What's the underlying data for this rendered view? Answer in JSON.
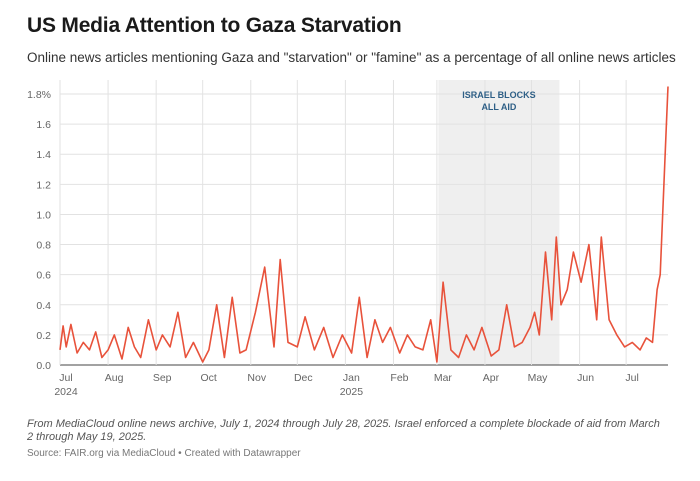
{
  "title": "US Media Attention to Gaza Starvation",
  "subtitle": "Online news articles mentioning Gaza and \"starvation\" or \"famine\" as a percentage of all online news articles",
  "notes": "From MediaCloud online news archive, July 1, 2024 through July 28, 2025. Israel enforced a complete blockade of aid from March 2 through May 19, 2025.",
  "source": "Source: FAIR.org via MediaCloud • Created with Datawrapper",
  "colors": {
    "line": "#e8523b",
    "shade": "#efefef",
    "grid": "#e2e2e2",
    "annotation": "#2e5f86"
  },
  "chart_data": {
    "type": "line",
    "title": "US Media Attention to Gaza Starvation",
    "xlabel": "",
    "ylabel": "",
    "xlim": [
      "2024-07-01",
      "2025-07-28"
    ],
    "ylim": [
      0,
      1.8
    ],
    "y_ticks": [
      "1.8%",
      "1.6",
      "1.4",
      "1.2",
      "1.0",
      "0.8",
      "0.6",
      "0.4",
      "0.2",
      "0.0"
    ],
    "x_ticks": [
      {
        "label": "Jul",
        "year": "2024"
      },
      {
        "label": "Aug",
        "year": ""
      },
      {
        "label": "Sep",
        "year": ""
      },
      {
        "label": "Oct",
        "year": ""
      },
      {
        "label": "Nov",
        "year": ""
      },
      {
        "label": "Dec",
        "year": ""
      },
      {
        "label": "Jan",
        "year": "2025"
      },
      {
        "label": "Feb",
        "year": ""
      },
      {
        "label": "Mar",
        "year": ""
      },
      {
        "label": "Apr",
        "year": ""
      },
      {
        "label": "May",
        "year": ""
      },
      {
        "label": "Jun",
        "year": ""
      },
      {
        "label": "Jul",
        "year": ""
      }
    ],
    "grid": true,
    "shaded_period": {
      "start": "2025-03-02",
      "end": "2025-05-19",
      "label_line1": "ISRAEL BLOCKS",
      "label_line2": "ALL AID"
    },
    "series": [
      {
        "x": [
          "2024-07-01",
          "2024-07-03",
          "2024-07-05",
          "2024-07-08",
          "2024-07-12",
          "2024-07-16",
          "2024-07-20",
          "2024-07-24",
          "2024-07-28",
          "2024-08-01",
          "2024-08-05",
          "2024-08-10",
          "2024-08-14",
          "2024-08-18",
          "2024-08-22",
          "2024-08-27",
          "2024-09-01",
          "2024-09-05",
          "2024-09-10",
          "2024-09-15",
          "2024-09-20",
          "2024-09-25",
          "2024-10-01",
          "2024-10-05",
          "2024-10-10",
          "2024-10-15",
          "2024-10-20",
          "2024-10-25",
          "2024-10-29",
          "2024-11-04",
          "2024-11-10",
          "2024-11-16",
          "2024-11-20",
          "2024-11-25",
          "2024-12-01",
          "2024-12-06",
          "2024-12-12",
          "2024-12-18",
          "2024-12-24",
          "2024-12-30",
          "2025-01-05",
          "2025-01-10",
          "2025-01-15",
          "2025-01-20",
          "2025-01-25",
          "2025-01-30",
          "2025-02-05",
          "2025-02-10",
          "2025-02-15",
          "2025-02-20",
          "2025-02-25",
          "2025-03-01",
          "2025-03-05",
          "2025-03-10",
          "2025-03-15",
          "2025-03-20",
          "2025-03-25",
          "2025-03-30",
          "2025-04-05",
          "2025-04-10",
          "2025-04-15",
          "2025-04-20",
          "2025-04-25",
          "2025-04-30",
          "2025-05-03",
          "2025-05-06",
          "2025-05-10",
          "2025-05-14",
          "2025-05-17",
          "2025-05-20",
          "2025-05-24",
          "2025-05-28",
          "2025-06-02",
          "2025-06-07",
          "2025-06-12",
          "2025-06-15",
          "2025-06-20",
          "2025-06-25",
          "2025-06-30",
          "2025-07-05",
          "2025-07-10",
          "2025-07-14",
          "2025-07-18",
          "2025-07-21",
          "2025-07-23",
          "2025-07-25",
          "2025-07-27",
          "2025-07-28"
        ],
        "y": [
          0.1,
          0.26,
          0.12,
          0.27,
          0.08,
          0.15,
          0.1,
          0.22,
          0.05,
          0.1,
          0.2,
          0.04,
          0.25,
          0.12,
          0.05,
          0.3,
          0.1,
          0.2,
          0.12,
          0.35,
          0.05,
          0.15,
          0.02,
          0.1,
          0.4,
          0.05,
          0.45,
          0.08,
          0.1,
          0.35,
          0.65,
          0.12,
          0.7,
          0.15,
          0.12,
          0.32,
          0.1,
          0.25,
          0.05,
          0.2,
          0.08,
          0.45,
          0.05,
          0.3,
          0.15,
          0.25,
          0.08,
          0.2,
          0.12,
          0.1,
          0.3,
          0.02,
          0.55,
          0.1,
          0.05,
          0.2,
          0.1,
          0.25,
          0.06,
          0.1,
          0.4,
          0.12,
          0.15,
          0.25,
          0.35,
          0.2,
          0.75,
          0.3,
          0.85,
          0.4,
          0.5,
          0.75,
          0.55,
          0.8,
          0.3,
          0.85,
          0.3,
          0.2,
          0.12,
          0.15,
          0.1,
          0.18,
          0.15,
          0.5,
          0.6,
          1.1,
          1.6,
          1.85
        ]
      }
    ]
  }
}
